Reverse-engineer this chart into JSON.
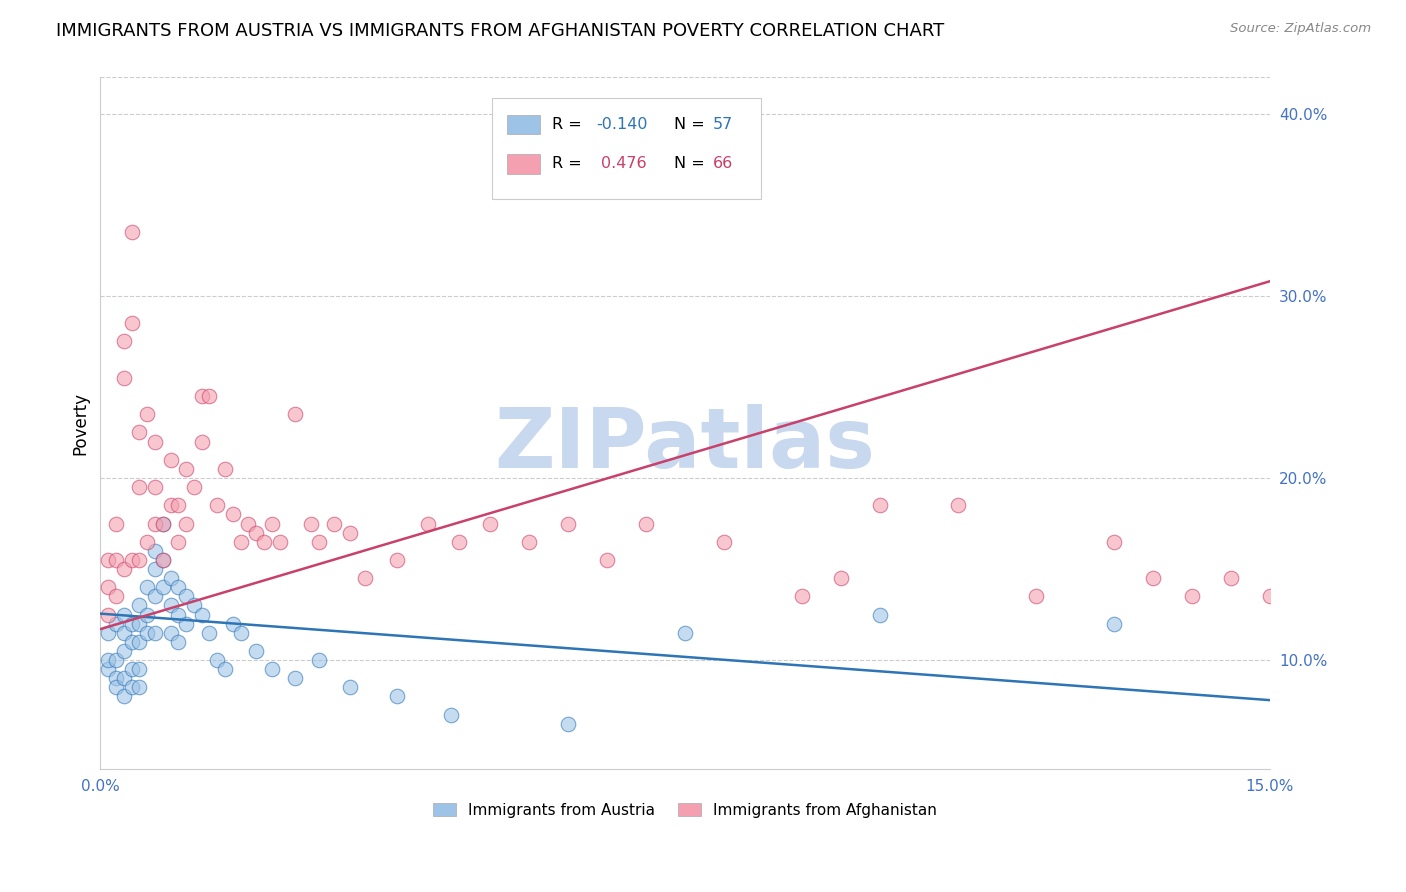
{
  "title": "IMMIGRANTS FROM AUSTRIA VS IMMIGRANTS FROM AFGHANISTAN POVERTY CORRELATION CHART",
  "source": "Source: ZipAtlas.com",
  "ylabel": "Poverty",
  "legend_austria": "Immigrants from Austria",
  "legend_afghanistan": "Immigrants from Afghanistan",
  "R_austria": -0.14,
  "N_austria": 57,
  "R_afghanistan": 0.476,
  "N_afghanistan": 66,
  "xlim": [
    0.0,
    0.15
  ],
  "ylim": [
    0.04,
    0.42
  ],
  "xticks": [
    0.0,
    0.025,
    0.05,
    0.075,
    0.1,
    0.125,
    0.15
  ],
  "xticklabels": [
    "0.0%",
    "",
    "",
    "",
    "",
    "",
    "15.0%"
  ],
  "yticks_right": [
    0.1,
    0.2,
    0.3,
    0.4
  ],
  "ytick_labels_right": [
    "10.0%",
    "20.0%",
    "30.0%",
    "40.0%"
  ],
  "color_austria": "#9DC3E6",
  "color_afghanistan": "#F4A0B0",
  "trendline_austria_color": "#2E75B6",
  "trendline_afghanistan_color": "#C9406A",
  "background_color": "#FFFFFF",
  "grid_color": "#CCCCCC",
  "austria_trendline": [
    0.1255,
    0.078
  ],
  "afghanistan_trendline": [
    0.117,
    0.308
  ],
  "austria_x": [
    0.001,
    0.001,
    0.001,
    0.002,
    0.002,
    0.002,
    0.002,
    0.003,
    0.003,
    0.003,
    0.003,
    0.003,
    0.004,
    0.004,
    0.004,
    0.004,
    0.005,
    0.005,
    0.005,
    0.005,
    0.005,
    0.006,
    0.006,
    0.006,
    0.007,
    0.007,
    0.007,
    0.007,
    0.008,
    0.008,
    0.008,
    0.009,
    0.009,
    0.009,
    0.01,
    0.01,
    0.01,
    0.011,
    0.011,
    0.012,
    0.013,
    0.014,
    0.015,
    0.016,
    0.017,
    0.018,
    0.02,
    0.022,
    0.025,
    0.028,
    0.032,
    0.038,
    0.045,
    0.06,
    0.075,
    0.1,
    0.13
  ],
  "austria_y": [
    0.115,
    0.095,
    0.1,
    0.12,
    0.1,
    0.09,
    0.085,
    0.115,
    0.105,
    0.09,
    0.08,
    0.125,
    0.12,
    0.11,
    0.095,
    0.085,
    0.13,
    0.12,
    0.11,
    0.095,
    0.085,
    0.14,
    0.125,
    0.115,
    0.16,
    0.15,
    0.135,
    0.115,
    0.175,
    0.155,
    0.14,
    0.145,
    0.13,
    0.115,
    0.14,
    0.125,
    0.11,
    0.135,
    0.12,
    0.13,
    0.125,
    0.115,
    0.1,
    0.095,
    0.12,
    0.115,
    0.105,
    0.095,
    0.09,
    0.1,
    0.085,
    0.08,
    0.07,
    0.065,
    0.115,
    0.125,
    0.12
  ],
  "afghanistan_x": [
    0.001,
    0.001,
    0.001,
    0.002,
    0.002,
    0.002,
    0.003,
    0.003,
    0.003,
    0.004,
    0.004,
    0.004,
    0.005,
    0.005,
    0.005,
    0.006,
    0.006,
    0.007,
    0.007,
    0.007,
    0.008,
    0.008,
    0.009,
    0.009,
    0.01,
    0.01,
    0.011,
    0.011,
    0.012,
    0.013,
    0.013,
    0.014,
    0.015,
    0.016,
    0.017,
    0.018,
    0.019,
    0.02,
    0.021,
    0.022,
    0.023,
    0.025,
    0.027,
    0.028,
    0.03,
    0.032,
    0.034,
    0.038,
    0.042,
    0.046,
    0.05,
    0.055,
    0.06,
    0.065,
    0.07,
    0.08,
    0.09,
    0.095,
    0.1,
    0.11,
    0.12,
    0.13,
    0.135,
    0.14,
    0.145,
    0.15
  ],
  "afghanistan_y": [
    0.155,
    0.14,
    0.125,
    0.175,
    0.155,
    0.135,
    0.275,
    0.255,
    0.15,
    0.335,
    0.285,
    0.155,
    0.225,
    0.195,
    0.155,
    0.235,
    0.165,
    0.22,
    0.195,
    0.175,
    0.175,
    0.155,
    0.21,
    0.185,
    0.185,
    0.165,
    0.205,
    0.175,
    0.195,
    0.245,
    0.22,
    0.245,
    0.185,
    0.205,
    0.18,
    0.165,
    0.175,
    0.17,
    0.165,
    0.175,
    0.165,
    0.235,
    0.175,
    0.165,
    0.175,
    0.17,
    0.145,
    0.155,
    0.175,
    0.165,
    0.175,
    0.165,
    0.175,
    0.155,
    0.175,
    0.165,
    0.135,
    0.145,
    0.185,
    0.185,
    0.135,
    0.165,
    0.145,
    0.135,
    0.145,
    0.135
  ],
  "watermark": "ZIPatlas",
  "watermark_color": "#C8D8EE",
  "axis_label_color": "#4472C4",
  "title_fontsize": 13,
  "axis_tick_fontsize": 11,
  "ylabel_fontsize": 12
}
